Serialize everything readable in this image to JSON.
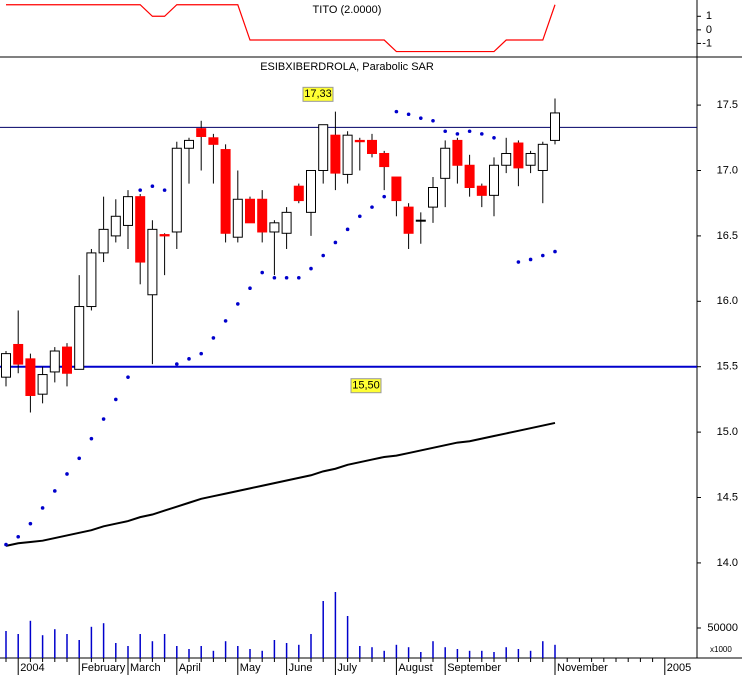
{
  "chart_data": [
    {
      "type": "line",
      "title": "TITO (2.0000)",
      "color": "#ff0000",
      "values": [
        1.85,
        1.85,
        1.85,
        1.85,
        1.85,
        1.85,
        1.85,
        1.85,
        1.85,
        1.85,
        1.85,
        1.85,
        1.0,
        1.0,
        1.85,
        1.85,
        1.85,
        1.85,
        1.85,
        1.85,
        -0.75,
        -0.75,
        -0.75,
        -0.75,
        -0.75,
        -0.75,
        -0.75,
        -0.75,
        -0.75,
        -0.75,
        -0.75,
        -0.75,
        -1.6,
        -1.6,
        -1.6,
        -1.6,
        -1.6,
        -1.6,
        -1.6,
        -1.6,
        -1.6,
        -0.75,
        -0.75,
        -0.75,
        -0.75,
        1.85,
        null,
        null,
        null,
        null,
        null,
        null,
        null,
        null,
        null
      ],
      "ylim": [
        -2.0,
        2.2
      ],
      "yticks": [
        1,
        0,
        -1
      ]
    },
    {
      "type": "candlestick",
      "title": "ESIBXIBERDROLA, Parabolic SAR",
      "categories": [
        null,
        "2004",
        null,
        null,
        null,
        null,
        "February",
        null,
        null,
        null,
        "March",
        null,
        null,
        null,
        "April",
        null,
        null,
        null,
        null,
        "May",
        null,
        null,
        null,
        "June",
        null,
        null,
        null,
        "July",
        null,
        null,
        null,
        null,
        "August",
        null,
        null,
        null,
        "September",
        null,
        null,
        null,
        null,
        null,
        null,
        null,
        null,
        "November",
        null,
        null,
        null,
        null,
        null,
        null,
        null,
        null,
        "2005"
      ],
      "open": [
        15.42,
        15.67,
        15.56,
        15.29,
        15.46,
        15.65,
        15.48,
        15.96,
        16.37,
        16.5,
        16.58,
        16.8,
        16.05,
        16.51,
        16.53,
        17.17,
        17.32,
        17.25,
        17.16,
        16.49,
        16.78,
        16.78,
        16.53,
        16.52,
        16.88,
        16.68,
        17.0,
        17.27,
        16.97,
        17.23,
        17.23,
        17.13,
        16.95,
        16.72,
        16.62,
        16.72,
        16.94,
        17.23,
        17.04,
        16.88,
        16.81,
        17.04,
        17.21,
        17.04,
        17.0,
        17.23,
        null,
        null,
        null,
        null,
        null,
        null,
        null,
        null,
        null
      ],
      "high": [
        15.62,
        15.93,
        15.6,
        15.5,
        15.65,
        15.68,
        16.2,
        16.4,
        16.8,
        16.78,
        16.85,
        16.82,
        16.62,
        16.52,
        17.22,
        17.25,
        17.38,
        17.28,
        17.2,
        17.0,
        16.8,
        16.85,
        16.62,
        16.72,
        16.9,
        17.0,
        17.35,
        17.45,
        17.3,
        17.25,
        17.28,
        17.15,
        16.95,
        16.75,
        16.68,
        16.95,
        17.23,
        17.25,
        17.12,
        16.9,
        17.1,
        17.25,
        17.23,
        17.15,
        17.22,
        17.55,
        null,
        null,
        null,
        null,
        null,
        null,
        null,
        null,
        null
      ],
      "low": [
        15.35,
        15.45,
        15.15,
        15.22,
        15.38,
        15.35,
        15.48,
        15.93,
        16.3,
        16.45,
        16.4,
        16.13,
        15.52,
        16.2,
        16.4,
        16.9,
        17.0,
        16.9,
        16.45,
        16.45,
        16.6,
        16.45,
        16.2,
        16.4,
        16.75,
        16.5,
        16.9,
        16.85,
        16.9,
        17.0,
        17.1,
        16.85,
        16.65,
        16.4,
        16.44,
        16.6,
        16.72,
        16.9,
        16.8,
        16.72,
        16.65,
        16.98,
        16.88,
        16.98,
        16.75,
        17.2,
        null,
        null,
        null,
        null,
        null,
        null,
        null,
        null,
        null
      ],
      "close": [
        15.6,
        15.52,
        15.28,
        15.44,
        15.62,
        15.45,
        15.96,
        16.37,
        16.55,
        16.65,
        16.8,
        16.3,
        16.55,
        16.5,
        17.17,
        17.23,
        17.26,
        17.2,
        16.52,
        16.78,
        16.6,
        16.53,
        16.6,
        16.68,
        16.77,
        17.0,
        17.35,
        16.98,
        17.27,
        17.22,
        17.13,
        17.03,
        16.77,
        16.52,
        16.62,
        16.87,
        17.17,
        17.04,
        16.87,
        16.81,
        17.04,
        17.13,
        17.02,
        17.13,
        17.2,
        17.44,
        null,
        null,
        null,
        null,
        null,
        null,
        null,
        null,
        null
      ],
      "up_color": "#ffffff",
      "down_color": "#ff0000",
      "sar": {
        "color": "#0000cc",
        "values": [
          14.14,
          14.2,
          14.3,
          14.42,
          14.55,
          14.68,
          14.8,
          14.95,
          15.1,
          15.25,
          15.42,
          16.85,
          16.88,
          16.85,
          15.52,
          15.56,
          15.6,
          15.72,
          15.85,
          15.98,
          16.1,
          16.22,
          16.18,
          16.18,
          16.18,
          16.25,
          16.35,
          16.45,
          16.55,
          16.65,
          16.72,
          16.8,
          17.45,
          17.43,
          17.4,
          17.38,
          17.3,
          17.28,
          17.3,
          17.28,
          17.25,
          null,
          16.3,
          16.32,
          16.35,
          16.38,
          null,
          null,
          null,
          null,
          null,
          null,
          null,
          null,
          null
        ]
      },
      "ma": {
        "color": "#000000",
        "values": [
          14.13,
          14.15,
          14.16,
          14.17,
          14.19,
          14.21,
          14.23,
          14.25,
          14.28,
          14.3,
          14.32,
          14.35,
          14.37,
          14.4,
          14.43,
          14.46,
          14.49,
          14.51,
          14.53,
          14.55,
          14.57,
          14.59,
          14.61,
          14.63,
          14.65,
          14.67,
          14.7,
          14.72,
          14.75,
          14.77,
          14.79,
          14.81,
          14.82,
          14.84,
          14.86,
          14.88,
          14.9,
          14.92,
          14.93,
          14.95,
          14.97,
          14.99,
          15.01,
          15.03,
          15.05,
          15.07,
          null,
          null,
          null,
          null,
          null,
          null,
          null,
          null,
          null
        ]
      },
      "hlines": [
        {
          "value": 17.33,
          "label": "17,33",
          "color": "#000066"
        },
        {
          "value": 15.5,
          "label": "15,50",
          "color": "#0000cc"
        }
      ],
      "ylim": [
        13.9,
        17.86
      ],
      "yticks": [
        {
          "value": 14,
          "label": "14.0"
        },
        14.5,
        {
          "value": 15,
          "label": "15.0"
        },
        15.5,
        {
          "value": 16,
          "label": "16.0"
        },
        16.5,
        {
          "value": 17,
          "label": "17.0"
        },
        17.5
      ]
    },
    {
      "type": "bar",
      "color": "#0000cc",
      "multiplier": "x1000",
      "values": [
        45000,
        40000,
        62000,
        38000,
        48000,
        40000,
        30000,
        52000,
        58000,
        25000,
        20000,
        40000,
        28000,
        40000,
        20000,
        15000,
        20000,
        12000,
        28000,
        20000,
        15000,
        12000,
        30000,
        25000,
        22000,
        40000,
        95000,
        110000,
        70000,
        20000,
        18000,
        12000,
        22000,
        18000,
        10000,
        28000,
        18000,
        15000,
        12000,
        12000,
        10000,
        18000,
        15000,
        12000,
        28000,
        22000,
        null,
        null,
        null,
        null,
        null,
        null,
        null,
        null,
        null
      ],
      "ylim": [
        0,
        130000
      ],
      "yticks": [
        50000
      ]
    }
  ]
}
